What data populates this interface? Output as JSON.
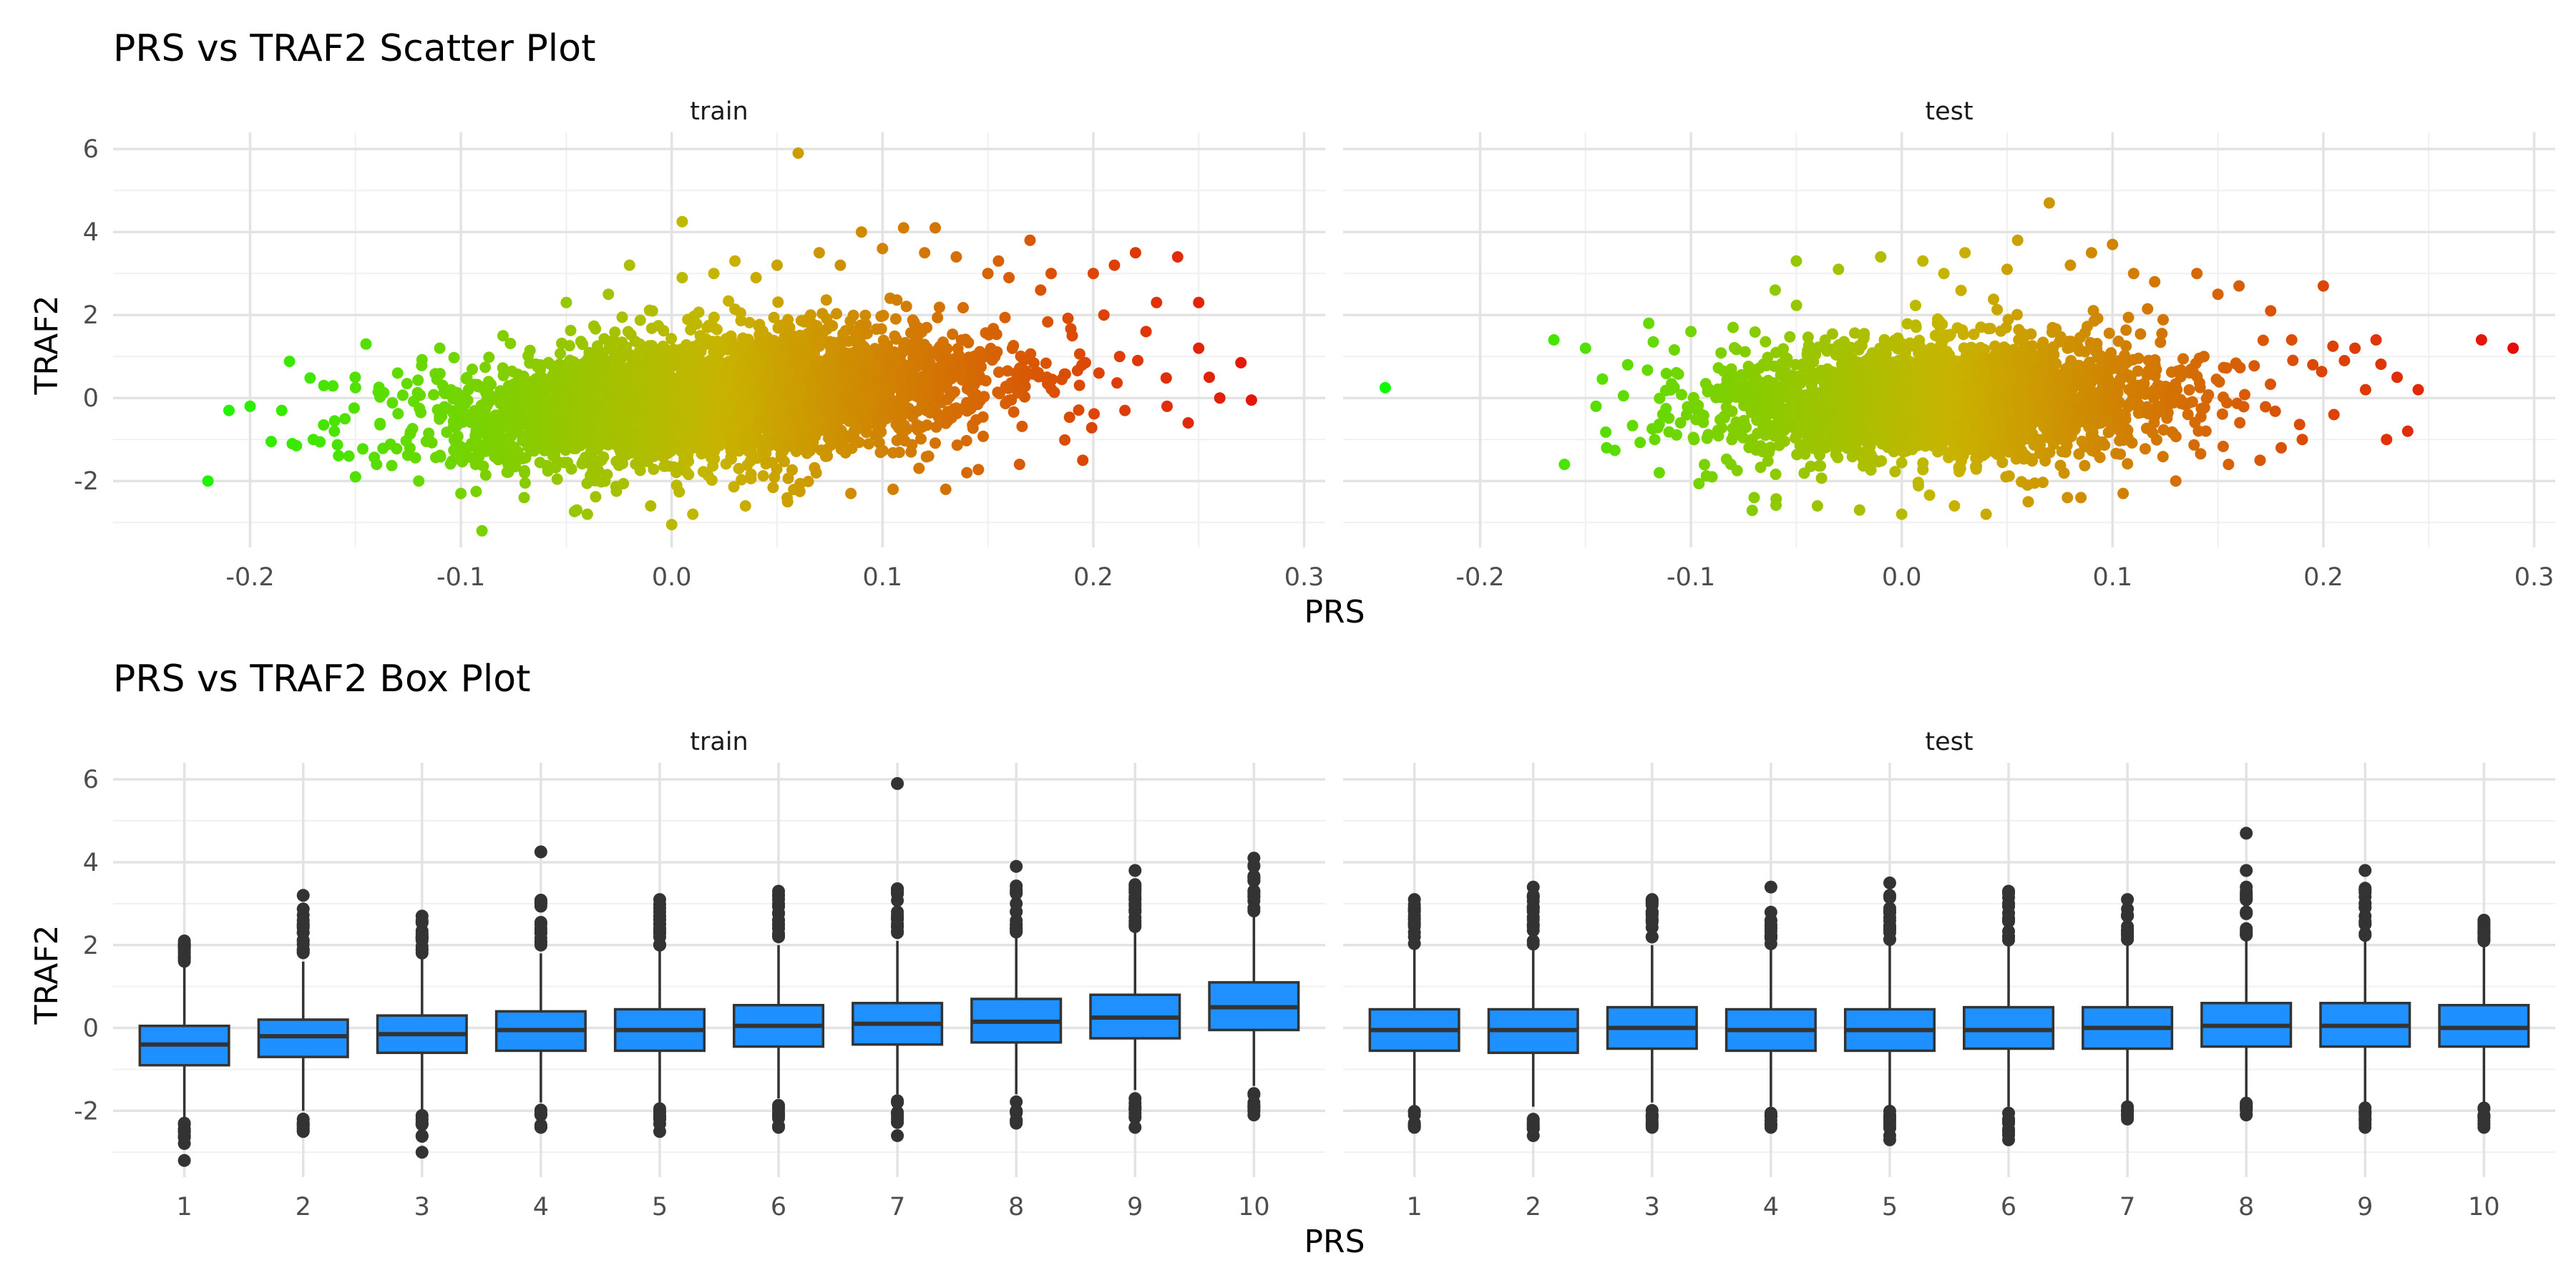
{
  "chart_data": [
    {
      "type": "scatter",
      "title": "PRS vs TRAF2 Scatter Plot",
      "xlabel": "PRS",
      "ylabel": "TRAF2",
      "facets": [
        "train",
        "test"
      ],
      "xlim": [
        -0.265,
        0.31
      ],
      "ylim": [
        -3.6,
        6.4
      ],
      "x_ticks": [
        -0.2,
        -0.1,
        0.0,
        0.1,
        0.2,
        0.3
      ],
      "x_tick_labels": [
        "-0.2",
        "-0.1",
        "0.0",
        "0.1",
        "0.2",
        "0.3"
      ],
      "y_ticks": [
        -2,
        0,
        2,
        4,
        6
      ],
      "y_tick_labels": [
        "-2",
        "0",
        "2",
        "4",
        "6"
      ],
      "grid": true,
      "color_scale": {
        "low": "#00ff00",
        "mid": "#c8b400",
        "high": "#e8000a"
      },
      "series": [
        {
          "name": "train",
          "points": [
            [
              -0.22,
              -2.0
            ],
            [
              -0.21,
              -0.3
            ],
            [
              -0.2,
              -0.2
            ],
            [
              -0.19,
              -1.05
            ],
            [
              -0.185,
              -0.3
            ],
            [
              -0.18,
              -1.1
            ],
            [
              -0.17,
              -1.0
            ],
            [
              -0.165,
              0.3
            ],
            [
              -0.16,
              -0.8
            ],
            [
              -0.155,
              -0.5
            ],
            [
              -0.15,
              0.25
            ],
            [
              -0.15,
              -1.9
            ],
            [
              -0.145,
              1.3
            ],
            [
              -0.14,
              -1.6
            ],
            [
              -0.13,
              0.6
            ],
            [
              -0.12,
              -2.0
            ],
            [
              -0.11,
              1.2
            ],
            [
              -0.1,
              -2.3
            ],
            [
              -0.09,
              -3.2
            ],
            [
              -0.08,
              1.5
            ],
            [
              -0.07,
              -2.4
            ],
            [
              -0.05,
              2.3
            ],
            [
              -0.045,
              -2.7
            ],
            [
              -0.04,
              -2.8
            ],
            [
              -0.03,
              2.5
            ],
            [
              -0.02,
              3.2
            ],
            [
              -0.01,
              -2.6
            ],
            [
              0.0,
              -3.05
            ],
            [
              0.005,
              2.9
            ],
            [
              0.01,
              -2.8
            ],
            [
              0.02,
              3.0
            ],
            [
              0.03,
              3.3
            ],
            [
              0.035,
              -2.6
            ],
            [
              0.04,
              2.9
            ],
            [
              0.05,
              3.2
            ],
            [
              0.055,
              -2.5
            ],
            [
              0.06,
              5.9
            ],
            [
              0.07,
              3.5
            ],
            [
              0.08,
              3.2
            ],
            [
              0.085,
              -2.3
            ],
            [
              0.09,
              4.0
            ],
            [
              0.1,
              3.6
            ],
            [
              0.105,
              -2.2
            ],
            [
              0.11,
              4.1
            ],
            [
              0.12,
              3.5
            ],
            [
              0.125,
              4.1
            ],
            [
              0.13,
              -2.2
            ],
            [
              0.135,
              3.4
            ],
            [
              0.14,
              -1.8
            ],
            [
              0.15,
              3.0
            ],
            [
              0.155,
              3.3
            ],
            [
              0.16,
              2.9
            ],
            [
              0.165,
              -1.6
            ],
            [
              0.17,
              3.8
            ],
            [
              0.175,
              2.6
            ],
            [
              0.18,
              3.0
            ],
            [
              0.19,
              1.5
            ],
            [
              0.195,
              -1.5
            ],
            [
              0.2,
              3.0
            ],
            [
              0.205,
              2.0
            ],
            [
              0.21,
              3.2
            ],
            [
              0.215,
              -0.3
            ],
            [
              0.22,
              3.5
            ],
            [
              0.225,
              1.6
            ],
            [
              0.23,
              2.3
            ],
            [
              0.235,
              -0.2
            ],
            [
              0.24,
              3.4
            ],
            [
              0.245,
              -0.6
            ],
            [
              0.25,
              1.2
            ],
            [
              0.25,
              2.3
            ],
            [
              0.255,
              0.5
            ],
            [
              0.26,
              0.0
            ],
            [
              0.27,
              0.85
            ],
            [
              0.275,
              -0.05
            ],
            [
              0.005,
              4.25
            ]
          ]
        },
        {
          "name": "test",
          "points": [
            [
              -0.245,
              0.25
            ],
            [
              -0.165,
              1.4
            ],
            [
              -0.16,
              -1.6
            ],
            [
              -0.15,
              1.2
            ],
            [
              -0.145,
              -0.2
            ],
            [
              -0.14,
              -1.2
            ],
            [
              -0.13,
              0.8
            ],
            [
              -0.12,
              1.8
            ],
            [
              -0.115,
              -1.8
            ],
            [
              -0.1,
              1.6
            ],
            [
              -0.09,
              -1.9
            ],
            [
              -0.08,
              1.7
            ],
            [
              -0.07,
              -2.4
            ],
            [
              -0.06,
              2.6
            ],
            [
              -0.05,
              3.3
            ],
            [
              -0.04,
              -2.6
            ],
            [
              -0.03,
              3.1
            ],
            [
              -0.02,
              -2.7
            ],
            [
              -0.01,
              3.4
            ],
            [
              0.0,
              -2.8
            ],
            [
              0.01,
              3.3
            ],
            [
              0.02,
              3.0
            ],
            [
              0.025,
              -2.6
            ],
            [
              0.03,
              3.5
            ],
            [
              0.04,
              -2.8
            ],
            [
              0.05,
              3.1
            ],
            [
              0.055,
              3.8
            ],
            [
              0.06,
              -2.5
            ],
            [
              0.07,
              4.7
            ],
            [
              0.08,
              3.2
            ],
            [
              0.085,
              -2.4
            ],
            [
              0.09,
              3.5
            ],
            [
              0.1,
              3.7
            ],
            [
              0.105,
              -2.3
            ],
            [
              0.11,
              3.0
            ],
            [
              0.12,
              2.8
            ],
            [
              0.13,
              -2.0
            ],
            [
              0.14,
              3.0
            ],
            [
              0.15,
              2.5
            ],
            [
              0.155,
              -1.6
            ],
            [
              0.16,
              2.7
            ],
            [
              0.17,
              -1.5
            ],
            [
              0.175,
              2.1
            ],
            [
              0.18,
              -1.2
            ],
            [
              0.185,
              1.4
            ],
            [
              0.19,
              -1.0
            ],
            [
              0.195,
              0.8
            ],
            [
              0.2,
              2.7
            ],
            [
              0.205,
              -0.4
            ],
            [
              0.21,
              0.9
            ],
            [
              0.215,
              1.2
            ],
            [
              0.22,
              0.2
            ],
            [
              0.225,
              1.4
            ],
            [
              0.23,
              -1.0
            ],
            [
              0.235,
              0.5
            ],
            [
              0.24,
              -0.8
            ],
            [
              0.245,
              0.2
            ],
            [
              0.275,
              1.4
            ],
            [
              0.29,
              1.2
            ]
          ]
        }
      ]
    },
    {
      "type": "box",
      "title": "PRS vs TRAF2 Box Plot",
      "xlabel": "PRS",
      "ylabel": "TRAF2",
      "facets": [
        "train",
        "test"
      ],
      "categories": [
        "1",
        "2",
        "3",
        "4",
        "5",
        "6",
        "7",
        "8",
        "9",
        "10"
      ],
      "ylim": [
        -3.6,
        6.4
      ],
      "y_ticks": [
        -2,
        0,
        2,
        4,
        6
      ],
      "y_tick_labels": [
        "-2",
        "0",
        "2",
        "4",
        "6"
      ],
      "grid": true,
      "fill_color": "#1e90ff",
      "series": [
        {
          "name": "train",
          "boxes": [
            {
              "category": "1",
              "lower": -2.2,
              "q1": -0.9,
              "median": -0.4,
              "q3": 0.05,
              "upper": 1.5,
              "outliers": [
                -3.2,
                -2.6,
                -2.3,
                1.7,
                1.9,
                2.1
              ]
            },
            {
              "category": "2",
              "lower": -2.0,
              "q1": -0.7,
              "median": -0.2,
              "q3": 0.2,
              "upper": 1.6,
              "outliers": [
                -2.5,
                -2.2,
                1.9,
                2.3,
                2.6,
                3.2
              ]
            },
            {
              "category": "3",
              "lower": -2.0,
              "q1": -0.6,
              "median": -0.15,
              "q3": 0.3,
              "upper": 1.7,
              "outliers": [
                -3.0,
                -2.6,
                -2.2,
                1.9,
                2.2,
                2.7
              ]
            },
            {
              "category": "4",
              "lower": -1.8,
              "q1": -0.55,
              "median": -0.05,
              "q3": 0.4,
              "upper": 1.8,
              "outliers": [
                -2.4,
                -2.1,
                2.0,
                2.5,
                3.0,
                4.25
              ]
            },
            {
              "category": "5",
              "lower": -1.8,
              "q1": -0.55,
              "median": -0.05,
              "q3": 0.45,
              "upper": 1.9,
              "outliers": [
                -2.5,
                -2.2,
                2.0,
                2.5,
                2.8,
                3.1
              ]
            },
            {
              "category": "6",
              "lower": -1.7,
              "q1": -0.45,
              "median": 0.05,
              "q3": 0.55,
              "upper": 2.0,
              "outliers": [
                -2.4,
                -2.1,
                2.2,
                2.6,
                3.0,
                3.3
              ]
            },
            {
              "category": "7",
              "lower": -1.6,
              "q1": -0.4,
              "median": 0.1,
              "q3": 0.6,
              "upper": 2.1,
              "outliers": [
                -2.6,
                -2.2,
                -1.8,
                2.3,
                2.8,
                3.3,
                5.9
              ]
            },
            {
              "category": "8",
              "lower": -1.6,
              "q1": -0.35,
              "median": 0.15,
              "q3": 0.7,
              "upper": 2.2,
              "outliers": [
                -2.3,
                -2.0,
                2.4,
                2.8,
                3.3,
                3.9
              ]
            },
            {
              "category": "9",
              "lower": -1.5,
              "q1": -0.25,
              "median": 0.25,
              "q3": 0.8,
              "upper": 2.3,
              "outliers": [
                -2.4,
                -1.9,
                2.5,
                2.8,
                3.1,
                3.8
              ]
            },
            {
              "category": "10",
              "lower": -1.4,
              "q1": -0.05,
              "median": 0.5,
              "q3": 1.1,
              "upper": 2.7,
              "outliers": [
                -2.1,
                -1.8,
                2.9,
                3.3,
                3.6,
                3.9,
                4.1
              ]
            }
          ]
        },
        {
          "name": "test",
          "boxes": [
            {
              "category": "1",
              "lower": -1.9,
              "q1": -0.55,
              "median": -0.05,
              "q3": 0.45,
              "upper": 1.9,
              "outliers": [
                -2.4,
                -2.1,
                2.2,
                2.5,
                3.1
              ]
            },
            {
              "category": "2",
              "lower": -1.9,
              "q1": -0.6,
              "median": -0.05,
              "q3": 0.45,
              "upper": 1.9,
              "outliers": [
                -2.6,
                -2.3,
                2.1,
                2.5,
                2.9,
                3.4
              ]
            },
            {
              "category": "3",
              "lower": -1.8,
              "q1": -0.5,
              "median": 0.0,
              "q3": 0.5,
              "upper": 2.0,
              "outliers": [
                -2.4,
                -2.1,
                2.2,
                2.6,
                3.1
              ]
            },
            {
              "category": "4",
              "lower": -1.9,
              "q1": -0.55,
              "median": -0.05,
              "q3": 0.45,
              "upper": 1.9,
              "outliers": [
                -2.4,
                -2.1,
                2.2,
                2.6,
                3.4
              ]
            },
            {
              "category": "5",
              "lower": -1.9,
              "q1": -0.55,
              "median": -0.05,
              "q3": 0.45,
              "upper": 2.0,
              "outliers": [
                -2.7,
                -2.4,
                -2.1,
                2.3,
                2.8,
                3.2,
                3.5
              ]
            },
            {
              "category": "6",
              "lower": -1.9,
              "q1": -0.5,
              "median": -0.05,
              "q3": 0.5,
              "upper": 2.0,
              "outliers": [
                -2.7,
                -2.3,
                2.2,
                2.6,
                3.3
              ]
            },
            {
              "category": "7",
              "lower": -1.8,
              "q1": -0.5,
              "median": 0.0,
              "q3": 0.5,
              "upper": 2.0,
              "outliers": [
                -2.2,
                -2.0,
                2.3,
                2.7,
                3.1
              ]
            },
            {
              "category": "8",
              "lower": -1.7,
              "q1": -0.45,
              "median": 0.05,
              "q3": 0.6,
              "upper": 2.1,
              "outliers": [
                -2.1,
                -1.9,
                2.3,
                2.8,
                3.4,
                3.8,
                4.7
              ]
            },
            {
              "category": "9",
              "lower": -1.8,
              "q1": -0.45,
              "median": 0.05,
              "q3": 0.6,
              "upper": 2.1,
              "outliers": [
                -2.4,
                -2.1,
                2.5,
                3.0,
                3.8
              ]
            },
            {
              "category": "10",
              "lower": -1.8,
              "q1": -0.45,
              "median": 0.0,
              "q3": 0.55,
              "upper": 2.0,
              "outliers": [
                -2.4,
                -2.1,
                2.2,
                2.6
              ]
            }
          ]
        }
      ]
    }
  ]
}
